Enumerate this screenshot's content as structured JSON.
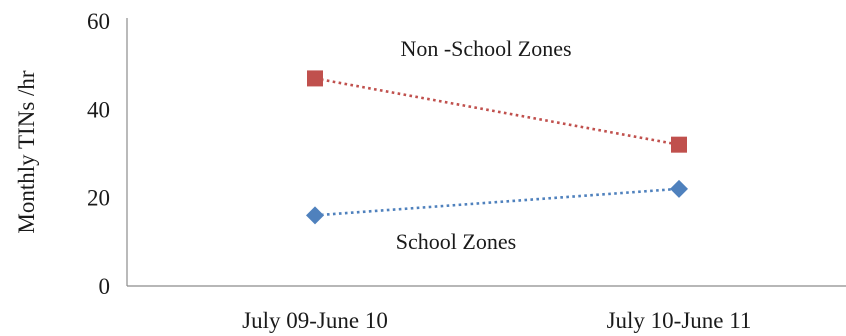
{
  "chart_data": {
    "type": "line",
    "categories": [
      "July 09-June 10",
      "July 10-June 11"
    ],
    "ylabel": "Monthly TINs /hr",
    "xlabel": "",
    "ylim": [
      0,
      60
    ],
    "yticks": [
      0,
      20,
      40,
      60
    ],
    "grid": false,
    "legend": "none",
    "series": [
      {
        "key": "non_school",
        "values": [
          47,
          32
        ],
        "color": "#c0504d",
        "marker": "square",
        "line_style": "dotted"
      },
      {
        "key": "school",
        "values": [
          16,
          22
        ],
        "color": "#4f81bd",
        "marker": "diamond",
        "line_style": "dotted"
      }
    ],
    "annotations": [
      {
        "series": "non_school",
        "text": "Non -School Zones"
      },
      {
        "series": "school",
        "text": "School Zones"
      }
    ]
  }
}
